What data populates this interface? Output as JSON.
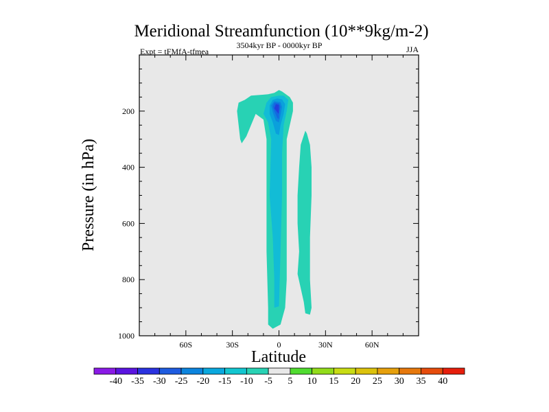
{
  "chart_data": {
    "type": "contour",
    "title": "Meridional Streamfunction (10**9kg/m-2)",
    "left_string": "Expt = tFMfA-tfmea",
    "center_string": "3504kyr BP - 0000kyr BP",
    "right_string": "JJA",
    "xlabel": "Latitude",
    "ylabel": "Pressure (in hPa)",
    "xlim": [
      -90,
      90
    ],
    "ylim": [
      1000,
      0
    ],
    "x_ticks": [
      {
        "value": -60,
        "label": "60S"
      },
      {
        "value": -30,
        "label": "30S"
      },
      {
        "value": 0,
        "label": "0"
      },
      {
        "value": 30,
        "label": "30N"
      },
      {
        "value": 60,
        "label": "60N"
      }
    ],
    "y_ticks": [
      {
        "value": 200,
        "label": "200"
      },
      {
        "value": 400,
        "label": "400"
      },
      {
        "value": 600,
        "label": "600"
      },
      {
        "value": 800,
        "label": "800"
      },
      {
        "value": 1000,
        "label": "1000"
      }
    ],
    "background_color": "#e8e8e8",
    "regions": [
      {
        "name": "main-negative-cell",
        "level": -5,
        "color": "#28d2b4",
        "points": [
          [
            -7,
            140
          ],
          [
            -18,
            145
          ],
          [
            -22,
            160
          ],
          [
            -26,
            170
          ],
          [
            -27,
            200
          ],
          [
            -25,
            300
          ],
          [
            -24,
            315
          ],
          [
            -21,
            290
          ],
          [
            -15,
            210
          ],
          [
            -10,
            230
          ],
          [
            -8,
            300
          ],
          [
            -8,
            500
          ],
          [
            -8,
            700
          ],
          [
            -7,
            900
          ],
          [
            -7,
            960
          ],
          [
            -4,
            975
          ],
          [
            1,
            960
          ],
          [
            4,
            900
          ],
          [
            5,
            800
          ],
          [
            5,
            600
          ],
          [
            5,
            400
          ],
          [
            5,
            300
          ],
          [
            7,
            250
          ],
          [
            9,
            200
          ],
          [
            9,
            170
          ],
          [
            7,
            150
          ],
          [
            2,
            130
          ],
          [
            0,
            125
          ],
          [
            -3,
            135
          ]
        ]
      },
      {
        "name": "southern-negative-band",
        "level": -5,
        "color": "#28d2b4",
        "points": [
          [
            17,
            270
          ],
          [
            14,
            320
          ],
          [
            13,
            400
          ],
          [
            12,
            500
          ],
          [
            12,
            600
          ],
          [
            13,
            700
          ],
          [
            12,
            780
          ],
          [
            16,
            880
          ],
          [
            17,
            920
          ],
          [
            20,
            925
          ],
          [
            21,
            900
          ],
          [
            20,
            800
          ],
          [
            20,
            650
          ],
          [
            21,
            500
          ],
          [
            21,
            400
          ],
          [
            20,
            320
          ],
          [
            18,
            280
          ]
        ]
      },
      {
        "name": "core-10",
        "level": -10,
        "color": "#12bcd6",
        "points": [
          [
            -5,
            150
          ],
          [
            -8,
            170
          ],
          [
            -10,
            210
          ],
          [
            -7,
            240
          ],
          [
            -5,
            300
          ],
          [
            -6,
            500
          ],
          [
            -4,
            650
          ],
          [
            -3,
            800
          ],
          [
            -3,
            900
          ],
          [
            0,
            895
          ],
          [
            1,
            700
          ],
          [
            2,
            500
          ],
          [
            2,
            350
          ],
          [
            3,
            250
          ],
          [
            5,
            200
          ],
          [
            6,
            160
          ],
          [
            3,
            145
          ],
          [
            0,
            145
          ]
        ]
      },
      {
        "name": "core-15",
        "level": -15,
        "color": "#0aa0dc",
        "points": [
          [
            -4,
            160
          ],
          [
            -6,
            180
          ],
          [
            -6,
            210
          ],
          [
            -4,
            240
          ],
          [
            -2,
            280
          ],
          [
            0,
            285
          ],
          [
            1,
            250
          ],
          [
            3,
            210
          ],
          [
            4,
            175
          ],
          [
            2,
            158
          ],
          [
            -1,
            155
          ]
        ]
      },
      {
        "name": "core-20",
        "level": -20,
        "color": "#0c84de",
        "points": [
          [
            -3,
            165
          ],
          [
            -5,
            180
          ],
          [
            -4,
            205
          ],
          [
            -2,
            235
          ],
          [
            0,
            240
          ],
          [
            1,
            215
          ],
          [
            2,
            185
          ],
          [
            1,
            168
          ]
        ]
      },
      {
        "name": "core-25",
        "level": -25,
        "color": "#1468e0",
        "points": [
          [
            -3,
            170
          ],
          [
            -4,
            185
          ],
          [
            -3,
            200
          ],
          [
            -1,
            225
          ],
          [
            0,
            228
          ],
          [
            0,
            205
          ],
          [
            1,
            185
          ],
          [
            0,
            172
          ]
        ]
      },
      {
        "name": "core-30",
        "level": -30,
        "color": "#2240dc",
        "points": [
          [
            -2,
            175
          ],
          [
            -3,
            190
          ],
          [
            -1,
            205
          ],
          [
            0,
            210
          ],
          [
            0,
            190
          ],
          [
            0,
            178
          ]
        ]
      }
    ],
    "colorbar": {
      "levels": [
        "-40",
        "-35",
        "-30",
        "-25",
        "-20",
        "-15",
        "-10",
        "-5",
        "5",
        "10",
        "15",
        "20",
        "25",
        "30",
        "35",
        "40"
      ],
      "colors": [
        "#8a1ae6",
        "#5a14e0",
        "#2a32e0",
        "#1e5ce0",
        "#0c84de",
        "#0aa8de",
        "#12c6d0",
        "#28d2b4",
        "#e8e8e8",
        "#50dc30",
        "#92dc1a",
        "#c8dc14",
        "#dcc20c",
        "#e6a00c",
        "#e6780c",
        "#e64c0c",
        "#e61e0c"
      ]
    }
  }
}
